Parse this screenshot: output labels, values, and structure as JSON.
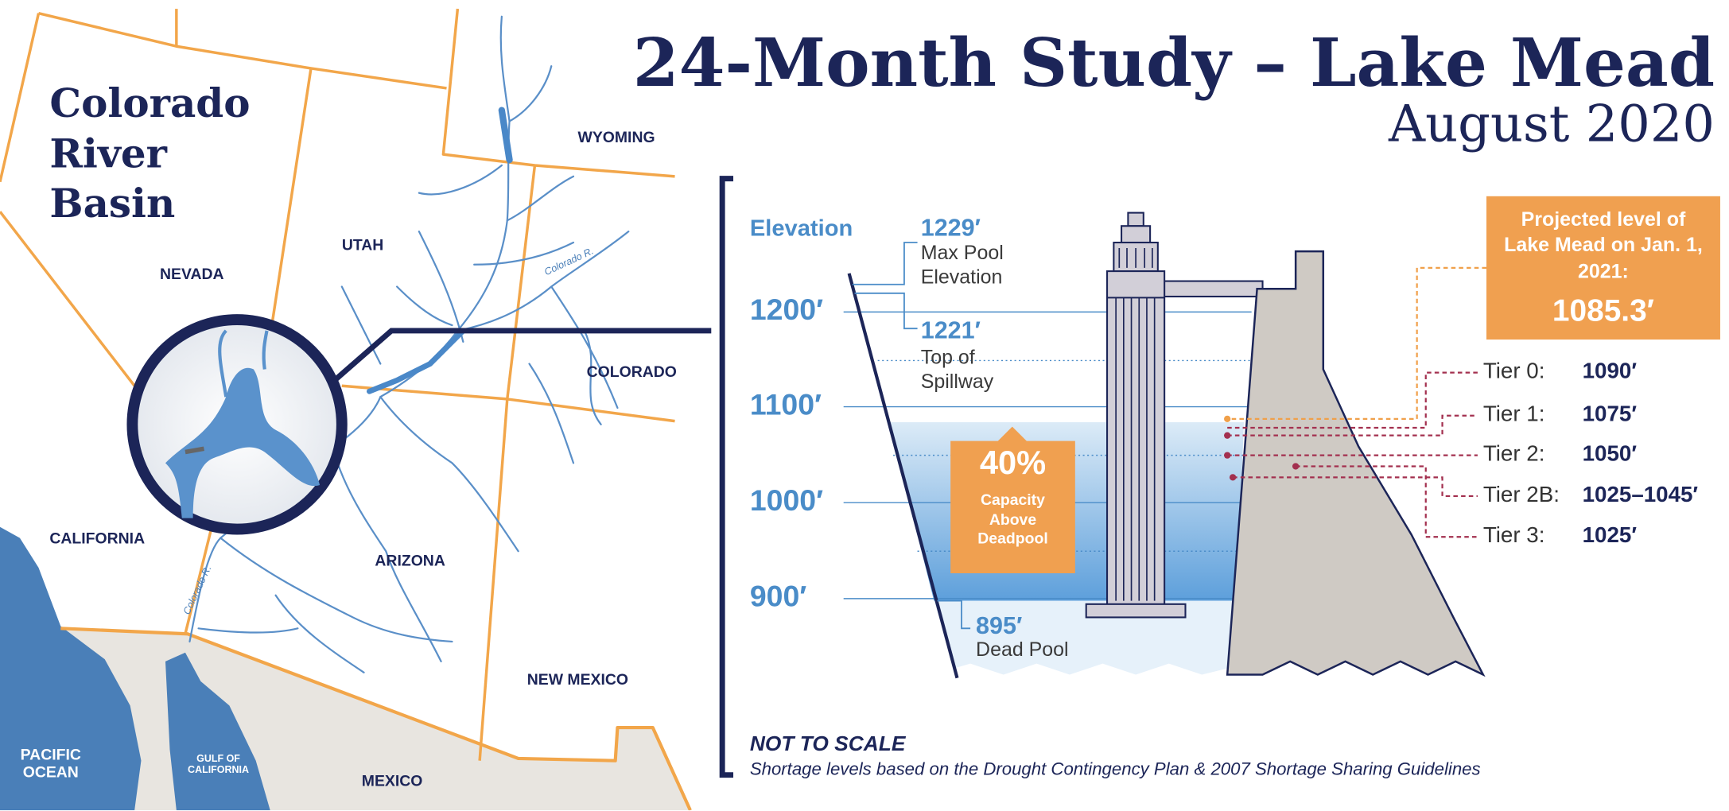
{
  "title": "24-Month Study – Lake Mead",
  "subtitle": "August 2020",
  "map": {
    "title": "Colorado River Basin",
    "labels": {
      "nevada": "NEVADA",
      "utah": "UTAH",
      "wyoming": "WYOMING",
      "colorado": "COLORADO",
      "california": "CALIFORNIA",
      "arizona": "ARIZONA",
      "new_mexico": "NEW MEXICO",
      "mexico": "MEXICO",
      "pacific_ocean": "PACIFIC OCEAN",
      "gulf_of_california": "GULF OF CALIFORNIA"
    },
    "river_labels": [
      "Colorado R.",
      "Colorado R."
    ]
  },
  "elevation": {
    "heading": "Elevation",
    "ticks": [
      "1200′",
      "1100′",
      "1000′",
      "900′"
    ],
    "markers": [
      {
        "value": "1229′",
        "label": "Max Pool Elevation"
      },
      {
        "value": "1221′",
        "label": "Top of Spillway"
      },
      {
        "value": "895′",
        "label": "Dead Pool"
      }
    ]
  },
  "capacity": {
    "value": "40%",
    "label": "Capacity Above Deadpool"
  },
  "projection": {
    "label": "Projected level of Lake Mead on Jan. 1, 2021:",
    "value": "1085.3′"
  },
  "tiers": [
    {
      "name": "Tier 0:",
      "level": "1090′"
    },
    {
      "name": "Tier 1:",
      "level": "1075′"
    },
    {
      "name": "Tier 2:",
      "level": "1050′"
    },
    {
      "name": "Tier 2B:",
      "level": "1025–1045′"
    },
    {
      "name": "Tier 3:",
      "level": "1025′"
    }
  ],
  "footer": {
    "note": "NOT TO SCALE",
    "source": "Shortage levels based on the Drought Contingency Plan & 2007 Shortage Sharing Guidelines"
  }
}
